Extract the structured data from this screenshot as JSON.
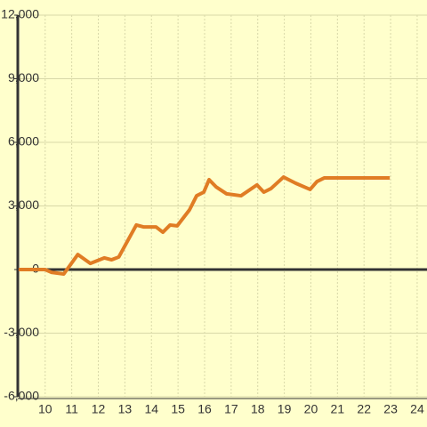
{
  "chart_data": {
    "type": "line",
    "x": [
      9.0,
      10,
      10.23,
      10.7,
      11.23,
      11.7,
      12.23,
      12.5,
      12.77,
      13.43,
      13.7,
      14.17,
      14.43,
      14.7,
      14.97,
      15.43,
      15.7,
      15.97,
      16.17,
      16.43,
      16.83,
      17.37,
      17.97,
      18.23,
      18.5,
      18.97,
      19.43,
      19.97,
      20.23,
      20.5,
      22.97
    ],
    "series": [
      {
        "color": "#e07c24",
        "values": [
          0,
          0,
          -130,
          -210,
          710,
          290,
          550,
          460,
          590,
          2100,
          2010,
          2010,
          1760,
          2100,
          2060,
          2810,
          3480,
          3650,
          4240,
          3900,
          3570,
          3480,
          3990,
          3650,
          3820,
          4360,
          4070,
          3780,
          4150,
          4320,
          4320
        ]
      }
    ],
    "xlim": [
      8.97,
      24.37
    ],
    "xticks": [
      10,
      11,
      12,
      13,
      14,
      15,
      16,
      17,
      18,
      19,
      20,
      21,
      22,
      23,
      24
    ],
    "ylim": [
      -6000,
      12000
    ],
    "yticks": [
      {
        "value": -6000,
        "label": "-6,000"
      },
      {
        "value": -3000,
        "label": "-3,000"
      },
      0,
      {
        "value": 3000,
        "label": "3,000"
      },
      {
        "value": 6000,
        "label": "6,000"
      },
      {
        "value": 9000,
        "label": "9,000"
      },
      {
        "value": 12000,
        "label": "12,000"
      }
    ],
    "grid": true
  }
}
